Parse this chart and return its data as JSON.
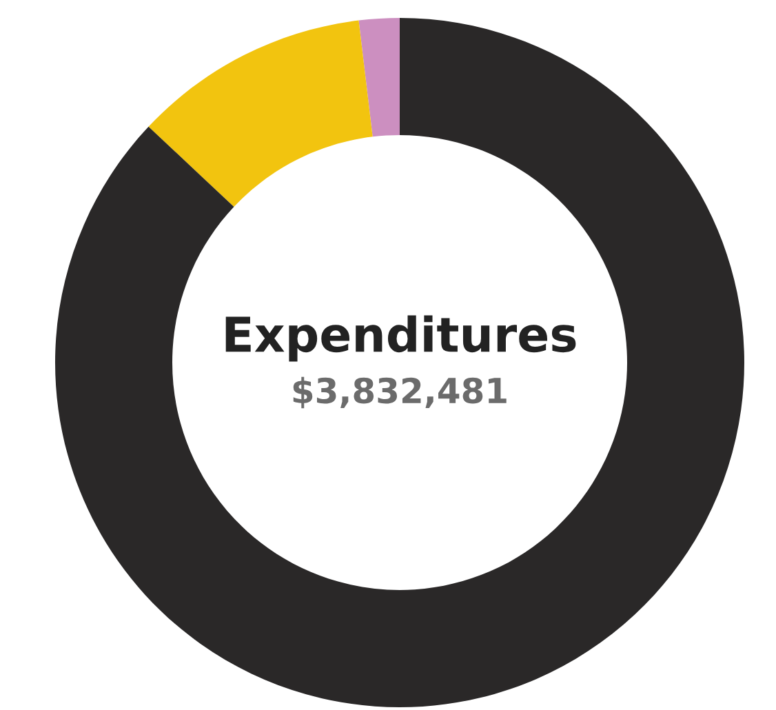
{
  "chart_data": {
    "type": "donut",
    "title": "Expenditures",
    "subtitle": "$3,832,481",
    "categories": [
      null,
      null,
      null
    ],
    "values": [
      1.9,
      11.1,
      87.0
    ],
    "colors": [
      "#cc8fc0",
      "#f2c40f",
      "#2a2828"
    ]
  }
}
